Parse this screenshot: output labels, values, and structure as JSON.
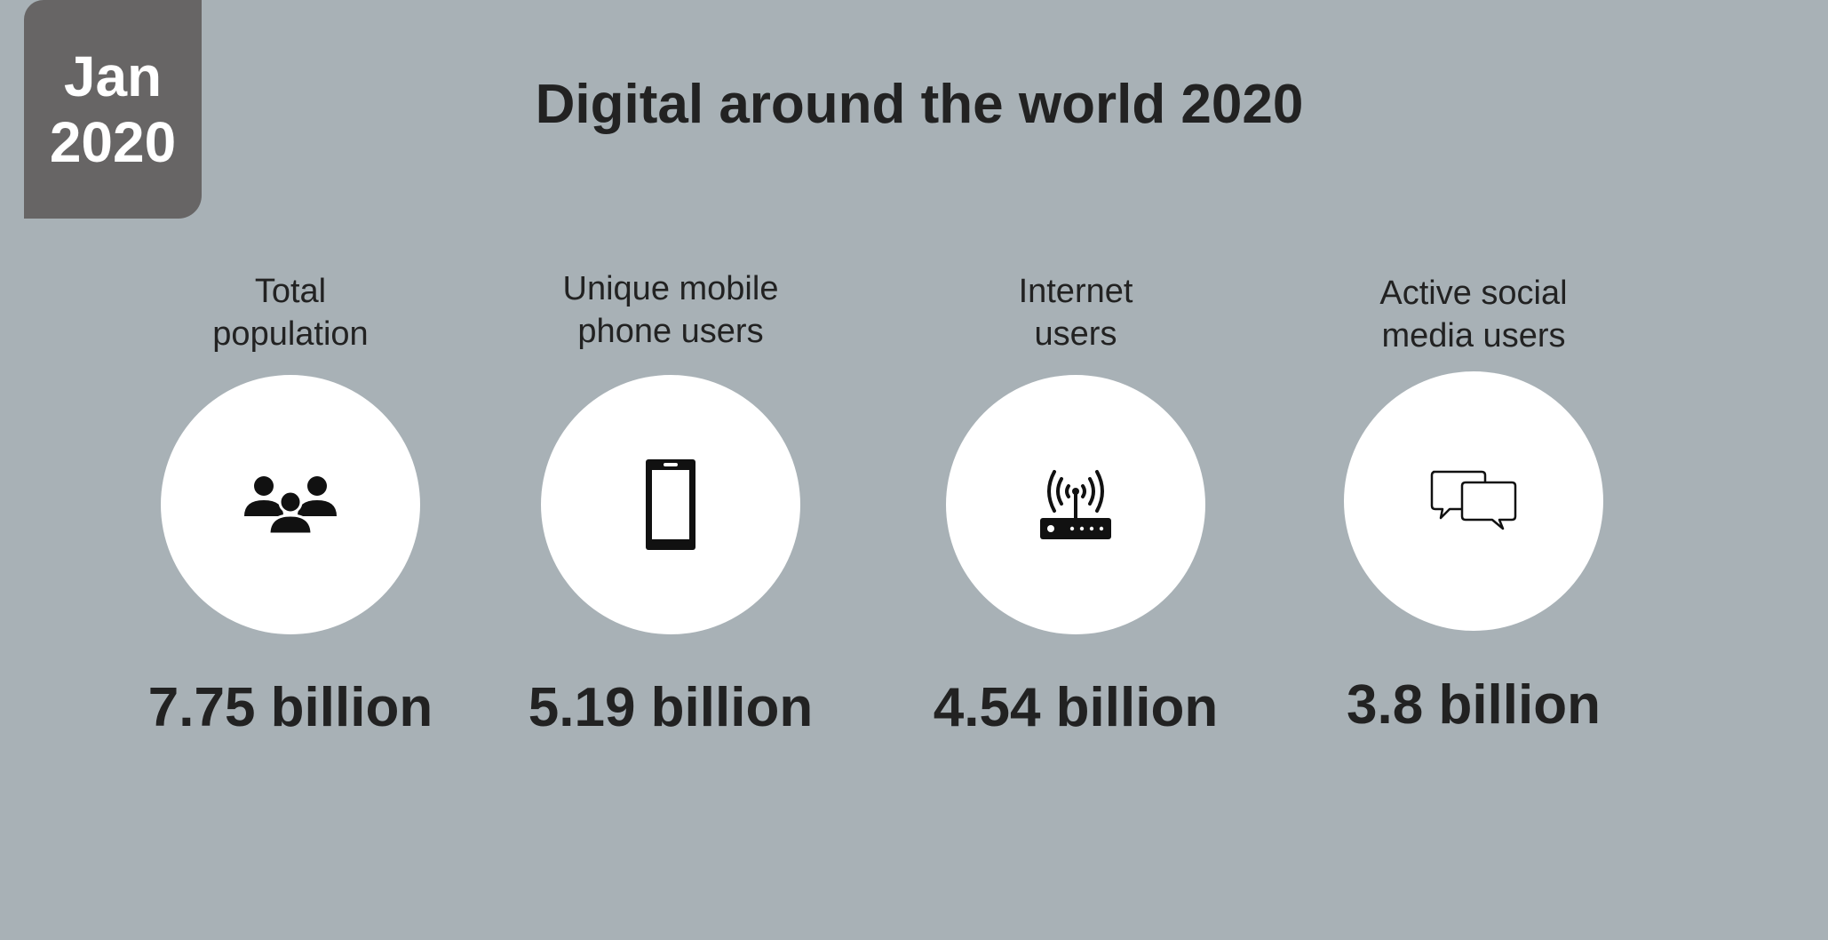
{
  "badge": {
    "month": "Jan",
    "year": "2020"
  },
  "title": "Digital around the world 2020",
  "stats": [
    {
      "label": "Total\npopulation",
      "value": "7.75 billion",
      "icon": "people-group-icon"
    },
    {
      "label": "Unique mobile\nphone users",
      "value": "5.19 billion",
      "icon": "mobile-phone-icon"
    },
    {
      "label": "Internet\nusers",
      "value": "4.54 billion",
      "icon": "wifi-router-icon"
    },
    {
      "label": "Active social\nmedia users",
      "value": "3.8 billion",
      "icon": "chat-bubbles-icon"
    }
  ],
  "colors": {
    "background": "#a8b1b6",
    "badge": "#676565",
    "text": "#222222",
    "circle": "#ffffff"
  }
}
